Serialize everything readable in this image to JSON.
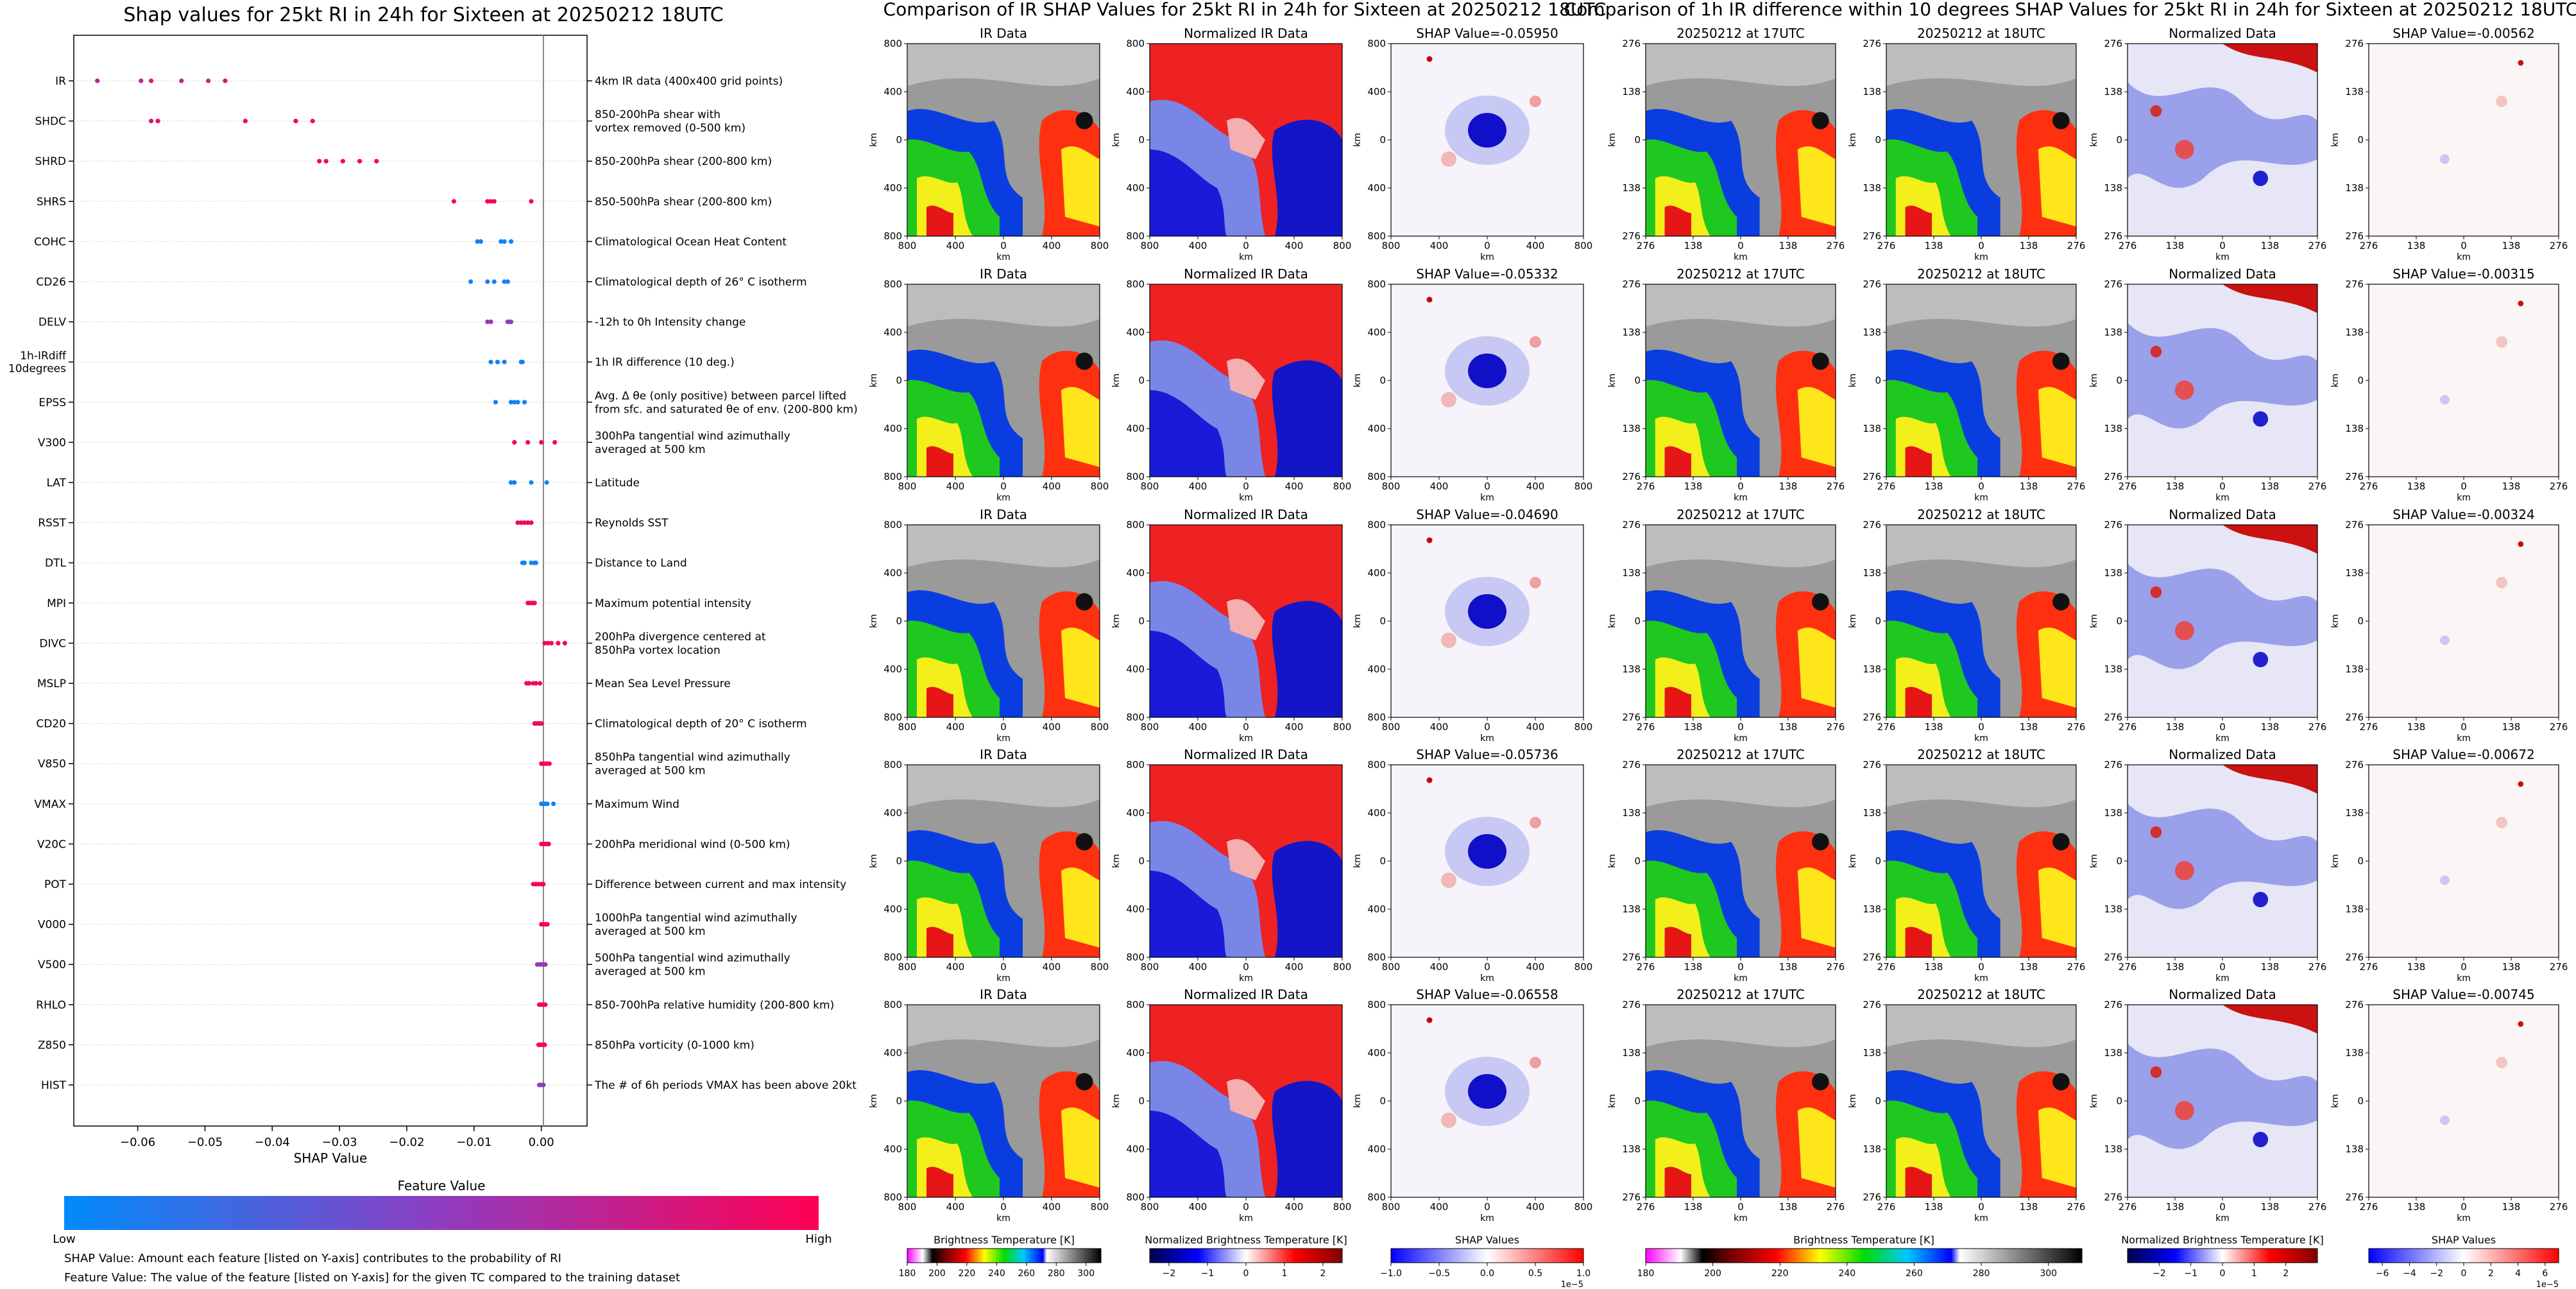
{
  "swarm": {
    "title": "Shap values for 25kt RI in 24h for Sixteen at 20250212 18UTC",
    "xlabel": "SHAP Value",
    "xticks": [
      "−0.06",
      "−0.05",
      "−0.04",
      "−0.03",
      "−0.02",
      "−0.01",
      "0.00"
    ],
    "colorbar_title": "Feature Value",
    "colorbar_low": "Low",
    "colorbar_high": "High",
    "colors": {
      "low": "#008bfb",
      "high": "#ff0052"
    },
    "note1": "SHAP Value: Amount each feature [listed on Y-axis] contributes to the probability of RI",
    "note2": "Feature Value: The value of the feature [listed on Y-axis] for the given TC compared to the training dataset"
  },
  "chart_data": [
    {
      "type": "scatter",
      "title": "Shap values for 25kt RI in 24h for Sixteen at 20250212 18UTC",
      "xlabel": "SHAP Value",
      "xlim": [
        -0.0695,
        0.0068
      ],
      "features": [
        {
          "name": "IR",
          "desc": "4km IR data (400x400 grid points)",
          "points": [
            [
              -0.066,
              0.7
            ],
            [
              -0.0595,
              0.72
            ],
            [
              -0.058,
              0.8
            ],
            [
              -0.0535,
              0.7
            ],
            [
              -0.0495,
              0.75
            ],
            [
              -0.047,
              0.8
            ]
          ]
        },
        {
          "name": "SHDC",
          "desc": "850-200hPa shear with\nvortex removed (0-500 km)",
          "points": [
            [
              -0.058,
              0.85
            ],
            [
              -0.057,
              0.9
            ],
            [
              -0.044,
              0.92
            ],
            [
              -0.0365,
              0.95
            ],
            [
              -0.034,
              0.95
            ]
          ]
        },
        {
          "name": "SHRD",
          "desc": "850-200hPa shear (200-800 km)",
          "points": [
            [
              -0.033,
              0.95
            ],
            [
              -0.032,
              0.95
            ],
            [
              -0.0295,
              0.95
            ],
            [
              -0.027,
              0.95
            ],
            [
              -0.0245,
              0.95
            ]
          ]
        },
        {
          "name": "SHRS",
          "desc": "850-500hPa shear (200-800 km)",
          "points": [
            [
              -0.013,
              0.95
            ],
            [
              -0.008,
              0.95
            ],
            [
              -0.0075,
              0.95
            ],
            [
              -0.007,
              0.95
            ],
            [
              -0.0015,
              0.95
            ]
          ]
        },
        {
          "name": "COHC",
          "desc": "Climatological Ocean Heat Content",
          "points": [
            [
              -0.0095,
              0.05
            ],
            [
              -0.009,
              0.05
            ],
            [
              -0.006,
              0.05
            ],
            [
              -0.0055,
              0.05
            ],
            [
              -0.0045,
              0.05
            ]
          ]
        },
        {
          "name": "CD26",
          "desc": "Climatological depth of 26° C isotherm",
          "points": [
            [
              -0.0105,
              0.05
            ],
            [
              -0.008,
              0.05
            ],
            [
              -0.007,
              0.05
            ],
            [
              -0.0055,
              0.05
            ],
            [
              -0.005,
              0.05
            ]
          ]
        },
        {
          "name": "DELV",
          "desc": "-12h to 0h Intensity change",
          "points": [
            [
              -0.008,
              0.55
            ],
            [
              -0.0075,
              0.55
            ],
            [
              -0.005,
              0.5
            ],
            [
              -0.0048,
              0.5
            ],
            [
              -0.0045,
              0.5
            ]
          ]
        },
        {
          "name": "1h-IRdiff\n10degrees",
          "desc": "1h IR difference (10 deg.)",
          "points": [
            [
              -0.0075,
              0.05
            ],
            [
              -0.0065,
              0.05
            ],
            [
              -0.0055,
              0.05
            ],
            [
              -0.003,
              0.05
            ],
            [
              -0.0028,
              0.05
            ]
          ]
        },
        {
          "name": "EPSS",
          "desc": "Avg. Δ θe (only positive) between parcel lifted\nfrom sfc. and saturated θe of env. (200-800 km)",
          "points": [
            [
              -0.0068,
              0.05
            ],
            [
              -0.0045,
              0.05
            ],
            [
              -0.004,
              0.05
            ],
            [
              -0.0035,
              0.05
            ],
            [
              -0.0025,
              0.05
            ]
          ]
        },
        {
          "name": "V300",
          "desc": "300hPa tangential wind azimuthally\naveraged at 500 km",
          "points": [
            [
              -0.004,
              0.95
            ],
            [
              -0.002,
              0.95
            ],
            [
              0.0,
              0.95
            ],
            [
              0.002,
              0.95
            ]
          ]
        },
        {
          "name": "LAT",
          "desc": "Latitude",
          "points": [
            [
              -0.0045,
              0.05
            ],
            [
              -0.004,
              0.05
            ],
            [
              -0.0015,
              0.05
            ],
            [
              0.0008,
              0.05
            ]
          ]
        },
        {
          "name": "RSST",
          "desc": "Reynolds SST",
          "points": [
            [
              -0.0035,
              0.95
            ],
            [
              -0.003,
              0.95
            ],
            [
              -0.0025,
              0.95
            ],
            [
              -0.002,
              0.95
            ],
            [
              -0.0015,
              0.95
            ]
          ]
        },
        {
          "name": "DTL",
          "desc": "Distance to Land",
          "points": [
            [
              -0.0028,
              0.05
            ],
            [
              -0.0025,
              0.05
            ],
            [
              -0.0015,
              0.05
            ],
            [
              -0.001,
              0.05
            ],
            [
              -0.0008,
              0.05
            ]
          ]
        },
        {
          "name": "MPI",
          "desc": "Maximum potential intensity",
          "points": [
            [
              -0.002,
              0.95
            ],
            [
              -0.0018,
              0.95
            ],
            [
              -0.0015,
              0.95
            ],
            [
              -0.0012,
              0.95
            ],
            [
              -0.001,
              0.95
            ]
          ]
        },
        {
          "name": "DIVC",
          "desc": "200hPa divergence centered at\n850hPa vortex location",
          "points": [
            [
              0.0005,
              0.95
            ],
            [
              0.001,
              0.95
            ],
            [
              0.0015,
              0.95
            ],
            [
              0.0025,
              0.95
            ],
            [
              0.0035,
              0.95
            ]
          ]
        },
        {
          "name": "MSLP",
          "desc": "Mean Sea Level Pressure",
          "points": [
            [
              -0.0022,
              0.95
            ],
            [
              -0.0018,
              0.95
            ],
            [
              -0.0012,
              0.95
            ],
            [
              -0.0008,
              0.95
            ],
            [
              -0.0002,
              0.95
            ]
          ]
        },
        {
          "name": "CD20",
          "desc": "Climatological depth of 20° C isotherm",
          "points": [
            [
              -0.001,
              0.95
            ],
            [
              -0.0008,
              0.95
            ],
            [
              -0.0005,
              0.95
            ],
            [
              -0.0003,
              0.95
            ],
            [
              0.0,
              0.95
            ]
          ]
        },
        {
          "name": "V850",
          "desc": "850hPa tangential wind azimuthally\naveraged at 500 km",
          "points": [
            [
              0.0,
              0.95
            ],
            [
              0.0003,
              0.95
            ],
            [
              0.0006,
              0.95
            ],
            [
              0.0009,
              0.95
            ],
            [
              0.0012,
              0.95
            ]
          ]
        },
        {
          "name": "VMAX",
          "desc": "Maximum Wind",
          "points": [
            [
              0.0,
              0.05
            ],
            [
              0.0003,
              0.05
            ],
            [
              0.0006,
              0.05
            ],
            [
              0.0009,
              0.05
            ],
            [
              0.0018,
              0.05
            ]
          ]
        },
        {
          "name": "V20C",
          "desc": "200hPa meridional wind (0-500 km)",
          "points": [
            [
              0.0,
              0.95
            ],
            [
              0.0003,
              0.95
            ],
            [
              0.0006,
              0.95
            ],
            [
              0.0009,
              0.95
            ],
            [
              0.0011,
              0.95
            ]
          ]
        },
        {
          "name": "POT",
          "desc": "Difference between current and max intensity",
          "points": [
            [
              -0.0012,
              0.95
            ],
            [
              -0.0008,
              0.95
            ],
            [
              -0.0004,
              0.95
            ],
            [
              0.0,
              0.95
            ],
            [
              0.0003,
              0.95
            ]
          ]
        },
        {
          "name": "V000",
          "desc": "1000hPa tangential wind azimuthally\naveraged at 500 km",
          "points": [
            [
              0.0,
              0.95
            ],
            [
              0.0003,
              0.95
            ],
            [
              0.0006,
              0.95
            ],
            [
              0.0009,
              0.95
            ]
          ]
        },
        {
          "name": "V500",
          "desc": "500hPa tangential wind azimuthally\naveraged at 500 km",
          "points": [
            [
              -0.0006,
              0.55
            ],
            [
              -0.0003,
              0.55
            ],
            [
              0.0,
              0.55
            ],
            [
              0.0003,
              0.55
            ],
            [
              0.0006,
              0.55
            ]
          ]
        },
        {
          "name": "RHLO",
          "desc": "850-700hPa relative humidity (200-800 km)",
          "points": [
            [
              -0.0003,
              0.95
            ],
            [
              0.0,
              0.95
            ],
            [
              0.0003,
              0.95
            ],
            [
              0.0006,
              0.95
            ]
          ]
        },
        {
          "name": "Z850",
          "desc": "850hPa vorticity (0-1000 km)",
          "points": [
            [
              -0.0004,
              0.95
            ],
            [
              -0.0001,
              0.95
            ],
            [
              0.0002,
              0.95
            ],
            [
              0.0005,
              0.95
            ]
          ]
        },
        {
          "name": "HIST",
          "desc": "The # of 6h periods VMAX has been above 20kt",
          "points": [
            [
              -0.0003,
              0.5
            ],
            [
              0.0,
              0.5
            ],
            [
              0.0003,
              0.5
            ]
          ]
        }
      ]
    },
    {
      "type": "heatmap",
      "title": "Comparison of IR SHAP Values for 25kt RI in 24h for Sixteen at 20250212 18UTC",
      "col_titles": [
        "IR Data",
        "Normalized IR Data"
      ],
      "shap_titles": [
        "SHAP Value=-0.05950",
        "SHAP Value=-0.05332",
        "SHAP Value=-0.04690",
        "SHAP Value=-0.05736",
        "SHAP Value=-0.06558"
      ],
      "axis_ticks": [
        "800",
        "400",
        "0",
        "400",
        "800"
      ],
      "axis_label": "km",
      "colorbars": [
        {
          "label": "Brightness Temperature [K]",
          "ticks": [
            "180",
            "200",
            "220",
            "240",
            "260",
            "280",
            "300"
          ],
          "range": [
            180,
            310
          ]
        },
        {
          "label": "Normalized Brightness Temperature [K]",
          "ticks": [
            "−2",
            "−1",
            "0",
            "1",
            "2"
          ],
          "range": [
            -2.5,
            2.5
          ]
        },
        {
          "label": "SHAP Values",
          "ticks": [
            "−1.0",
            "−0.5",
            "0.0",
            "0.5",
            "1.0"
          ],
          "range": [
            -1,
            1
          ],
          "exponent": "1e−5"
        }
      ]
    },
    {
      "type": "heatmap",
      "title": "Comparison of 1h IR difference within 10 degrees SHAP Values for 25kt RI in 24h for Sixteen at 20250212 18UTC",
      "col_titles": [
        "20250212 at 17UTC",
        "20250212 at 18UTC",
        "Normalized Data"
      ],
      "shap_titles": [
        "SHAP Value=-0.00562",
        "SHAP Value=-0.00315",
        "SHAP Value=-0.00324",
        "SHAP Value=-0.00672",
        "SHAP Value=-0.00745"
      ],
      "axis_ticks": [
        "276",
        "138",
        "0",
        "138",
        "276"
      ],
      "axis_label": "km",
      "colorbars": [
        {
          "label": "Brightness Temperature [K]",
          "ticks": [
            "180",
            "200",
            "220",
            "240",
            "260",
            "280",
            "300"
          ],
          "range": [
            180,
            310
          ]
        },
        {
          "label": "Normalized Brightness Temperature [K]",
          "ticks": [
            "−2",
            "−1",
            "0",
            "1",
            "2"
          ],
          "range": [
            -3,
            3
          ]
        },
        {
          "label": "SHAP Values",
          "ticks": [
            "−6",
            "−4",
            "−2",
            "0",
            "2",
            "4",
            "6"
          ],
          "range": [
            -7,
            7
          ],
          "exponent": "1e−5"
        }
      ]
    }
  ]
}
